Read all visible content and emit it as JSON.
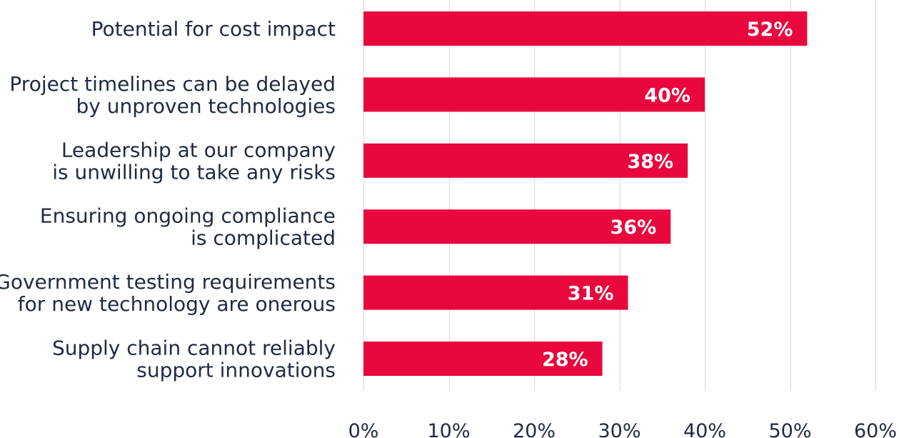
{
  "chart_data": {
    "type": "bar",
    "orientation": "horizontal",
    "categories": [
      [
        "Potential for cost impact"
      ],
      [
        "Project timelines can be delayed",
        "by unproven technologies"
      ],
      [
        "Leadership at our company",
        "is unwilling to take any risks"
      ],
      [
        "Ensuring ongoing compliance",
        "is complicated"
      ],
      [
        "Government testing requirements",
        "for new technology are onerous"
      ],
      [
        "Supply chain cannot reliably",
        "support innovations"
      ]
    ],
    "values": [
      52,
      40,
      38,
      36,
      31,
      28
    ],
    "data_labels": [
      "52%",
      "40%",
      "38%",
      "36%",
      "31%",
      "28%"
    ],
    "xlim": [
      0,
      60
    ],
    "x_ticks": [
      0,
      10,
      20,
      30,
      40,
      50,
      60
    ],
    "x_tick_labels": [
      "0%",
      "10%",
      "20%",
      "30%",
      "40%",
      "50%",
      "60%"
    ],
    "bar_color": "#e8083e",
    "grid": true,
    "legend": false
  }
}
